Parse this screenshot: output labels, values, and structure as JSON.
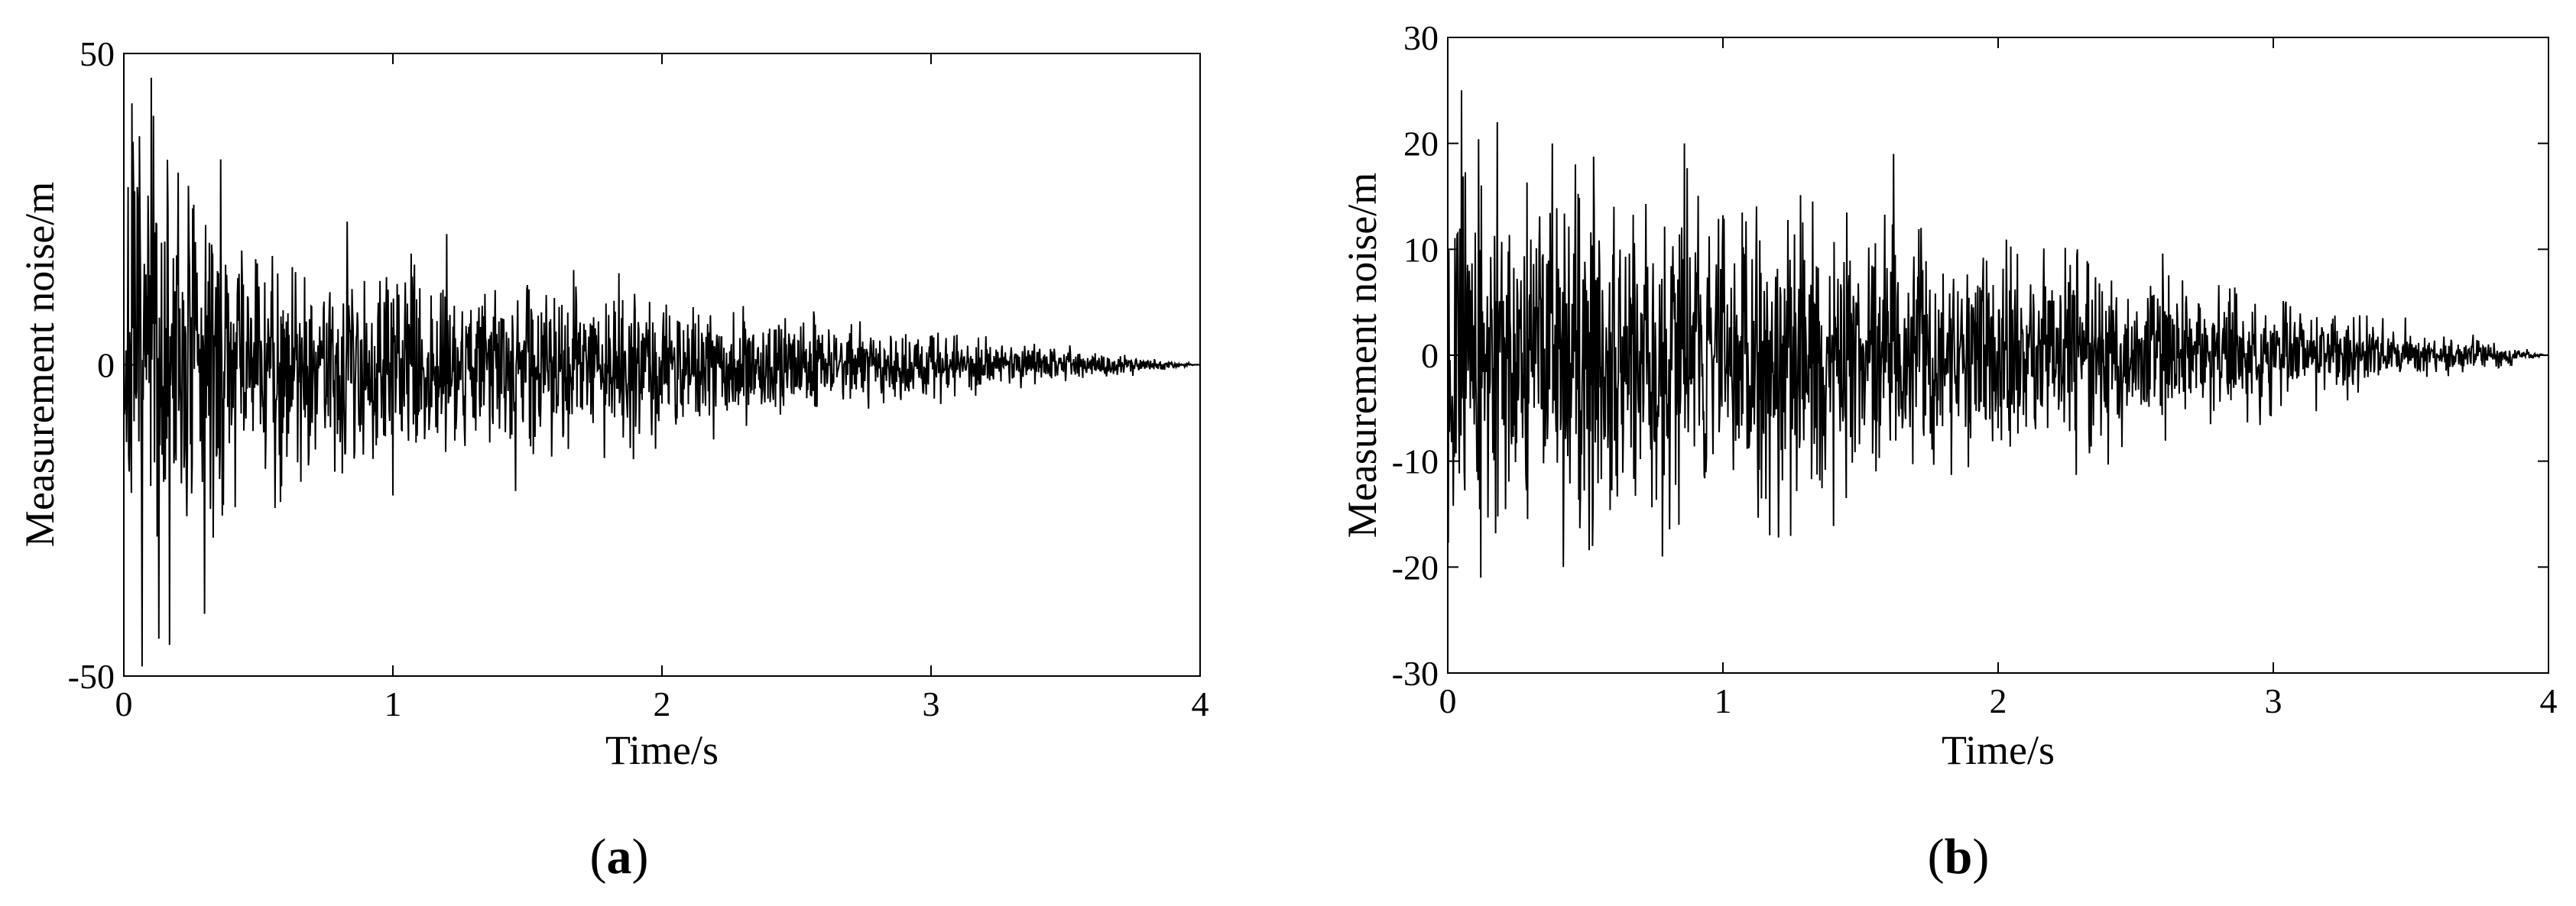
{
  "chart_data": [
    {
      "type": "line",
      "panel_label": "a",
      "xlabel": "Time/s",
      "ylabel": "Measurement noise/m",
      "xlim": [
        0,
        4
      ],
      "ylim": [
        -50,
        50
      ],
      "xticks": [
        0,
        1,
        2,
        3,
        4
      ],
      "yticks": [
        -50,
        0,
        50
      ],
      "xtick_labels": [
        "0",
        "1",
        "2",
        "3",
        "4"
      ],
      "ytick_labels": [
        "-50",
        "0",
        "50"
      ],
      "grid": false,
      "line_color": "#000000",
      "series": [
        {
          "description_note": "",
          "sample_count": 2000,
          "seed": 7,
          "envelope_time": [
            0,
            0.05,
            0.12,
            0.2,
            0.4,
            0.8,
            1.2,
            1.6,
            2.0,
            2.4,
            2.8,
            3.2,
            3.5,
            3.8,
            4.0
          ],
          "envelope_amplitude": [
            22,
            30,
            32,
            26,
            18,
            14,
            13,
            11,
            9,
            7,
            5.5,
            3.5,
            2.2,
            1.0,
            0
          ],
          "peaks": [
            [
              0.03,
              42
            ],
            [
              0.11,
              40
            ],
            [
              0.17,
              -45
            ],
            [
              0.13,
              -44
            ],
            [
              0.36,
              33
            ],
            [
              0.3,
              -40
            ],
            [
              0.83,
              23
            ],
            [
              1.2,
              21
            ],
            [
              1.0,
              -21
            ]
          ]
        }
      ]
    },
    {
      "type": "line",
      "panel_label": "b",
      "xlabel": "Time/s",
      "ylabel": "Measurement noise/m",
      "xlim": [
        0,
        4
      ],
      "ylim": [
        -30,
        30
      ],
      "xticks": [
        0,
        1,
        2,
        3,
        4
      ],
      "yticks": [
        -30,
        -20,
        -10,
        0,
        10,
        20,
        30
      ],
      "xtick_labels": [
        "0",
        "1",
        "2",
        "3",
        "4"
      ],
      "ytick_labels": [
        "-30",
        "-20",
        "-10",
        "0",
        "10",
        "20",
        "30"
      ],
      "grid": false,
      "line_color": "#000000",
      "series": [
        {
          "description_note": "",
          "sample_count": 2000,
          "seed": 13,
          "envelope_time": [
            0,
            0.1,
            0.4,
            0.8,
            1.2,
            1.6,
            2.0,
            2.4,
            2.8,
            3.2,
            3.5,
            3.8,
            4.0
          ],
          "envelope_amplitude": [
            12,
            13,
            12.5,
            12,
            11,
            10,
            8.5,
            7,
            5,
            3.2,
            2,
            1,
            0
          ],
          "peaks": [
            [
              0.05,
              25
            ],
            [
              0.18,
              22
            ],
            [
              0.38,
              20
            ],
            [
              0.86,
              20
            ],
            [
              1.62,
              19
            ],
            [
              0.12,
              -21
            ],
            [
              0.42,
              -20
            ],
            [
              0.78,
              -19
            ],
            [
              1.17,
              -17
            ]
          ]
        }
      ]
    }
  ]
}
